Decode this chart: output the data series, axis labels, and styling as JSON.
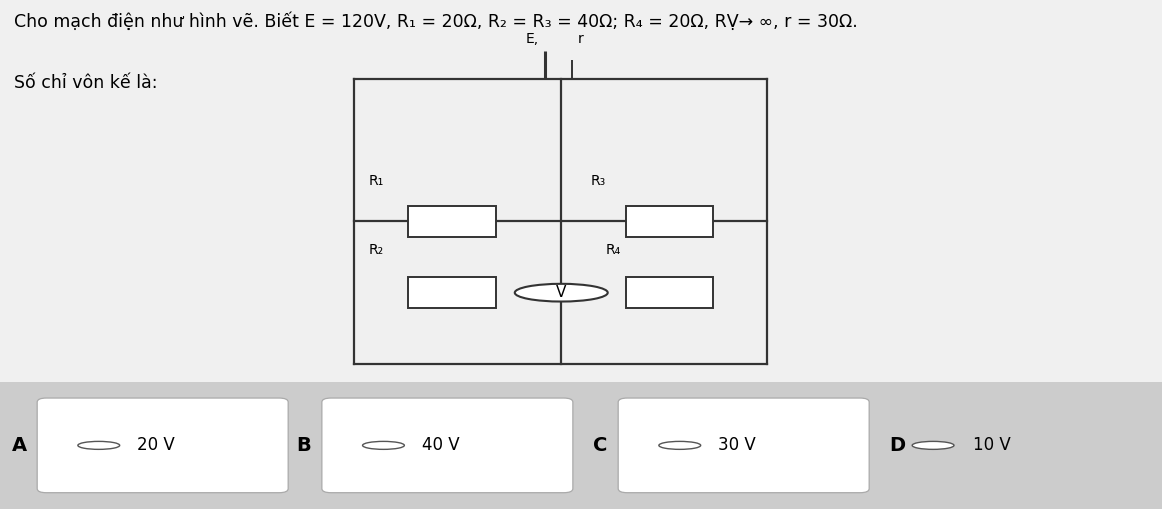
{
  "title_line1": "Cho mạch điện như hình vẽ. Biết E = 120V, R₁ = 20Ω, R₂ = R₃ = 40Ω; R₄ = 20Ω, RṾ→ ∞, r = 30Ω.",
  "title_line2": "Số chỉ vôn kế là:",
  "bg_top": "#f0f0f0",
  "bg_bottom": "#d0d0d0",
  "answers": [
    {
      "label": "A",
      "text": "20 V",
      "has_box": true
    },
    {
      "label": "B",
      "text": "40 V",
      "has_box": true
    },
    {
      "label": "C",
      "text": "30 V",
      "has_box": true
    },
    {
      "label": "D",
      "text": "10 V",
      "has_box": false
    }
  ],
  "CL": 0.305,
  "CR": 0.66,
  "CT": 0.845,
  "CB": 0.285,
  "MX": 0.483,
  "MY": 0.565,
  "r1_label": "R₁",
  "r2_label": "R₂",
  "r3_label": "R₃",
  "r4_label": "R₄",
  "line_color": "#333333",
  "lw": 1.6
}
